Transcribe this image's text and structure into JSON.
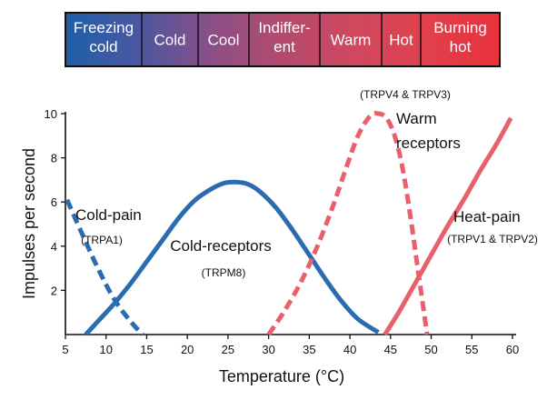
{
  "scale_bar": {
    "segments": [
      {
        "label_lines": [
          "Freezing",
          "cold"
        ]
      },
      {
        "label_lines": [
          "Cold"
        ]
      },
      {
        "label_lines": [
          "Cool"
        ]
      },
      {
        "label_lines": [
          "Indiffer-",
          "ent"
        ]
      },
      {
        "label_lines": [
          "Warm"
        ]
      },
      {
        "label_lines": [
          "Hot"
        ]
      },
      {
        "label_lines": [
          "Burning",
          "hot"
        ]
      }
    ],
    "gradient_colors": [
      "#1f5fa8",
      "#4a58a0",
      "#8a4f88",
      "#b44a6e",
      "#d0485e",
      "#e1404c",
      "#e8313c"
    ]
  },
  "chart_data": {
    "type": "line",
    "xlabel": "Temperature (°C)",
    "ylabel": "Impulses per second",
    "xlim": [
      5,
      60
    ],
    "ylim": [
      0,
      10
    ],
    "xticks": [
      5,
      10,
      15,
      20,
      25,
      30,
      35,
      40,
      45,
      50,
      55,
      60
    ],
    "yticks": [
      2,
      4,
      6,
      8,
      10
    ],
    "grid": false,
    "series": [
      {
        "name": "Cold-pain",
        "sublabel": "(TRPA1)",
        "color": "#2b6cb0",
        "style": "dashed",
        "x": [
          5.2,
          7,
          9,
          11,
          13,
          14.5
        ],
        "y": [
          6.1,
          4.6,
          3.0,
          1.6,
          0.6,
          0.0
        ]
      },
      {
        "name": "Cold-receptors",
        "sublabel": "(TRPM8)",
        "color": "#2b6cb0",
        "style": "solid",
        "x": [
          7.5,
          9,
          11,
          13,
          15,
          17,
          19,
          21,
          23,
          24.5,
          26,
          27.5,
          29,
          31,
          33,
          35,
          37,
          39,
          41,
          43.5
        ],
        "y": [
          0.0,
          0.6,
          1.4,
          2.3,
          3.3,
          4.3,
          5.3,
          6.1,
          6.6,
          6.85,
          6.9,
          6.8,
          6.45,
          5.7,
          4.7,
          3.6,
          2.5,
          1.5,
          0.7,
          0.1
        ]
      },
      {
        "name": "Warm receptors",
        "sublabel": "(TRPV4 & TRPV3)",
        "color": "#e8606a",
        "style": "dashed",
        "x": [
          30,
          32,
          34,
          36,
          38,
          39.5,
          41,
          42.5,
          43.5,
          44.5,
          45.5,
          46.5,
          47.5,
          48.5,
          49.5
        ],
        "y": [
          0.0,
          1.1,
          2.4,
          4.0,
          5.9,
          7.5,
          9.0,
          9.9,
          10.0,
          9.8,
          9.0,
          7.5,
          5.2,
          2.6,
          0.0
        ]
      },
      {
        "name": "Heat-pain",
        "sublabel": "(TRPV1 & TRPV2)",
        "color": "#e8606a",
        "style": "solid",
        "x": [
          44.3,
          46,
          48,
          50,
          52,
          54,
          56,
          58,
          59.8
        ],
        "y": [
          0.0,
          1.0,
          2.3,
          3.6,
          4.9,
          6.1,
          7.4,
          8.6,
          9.8
        ]
      }
    ]
  }
}
